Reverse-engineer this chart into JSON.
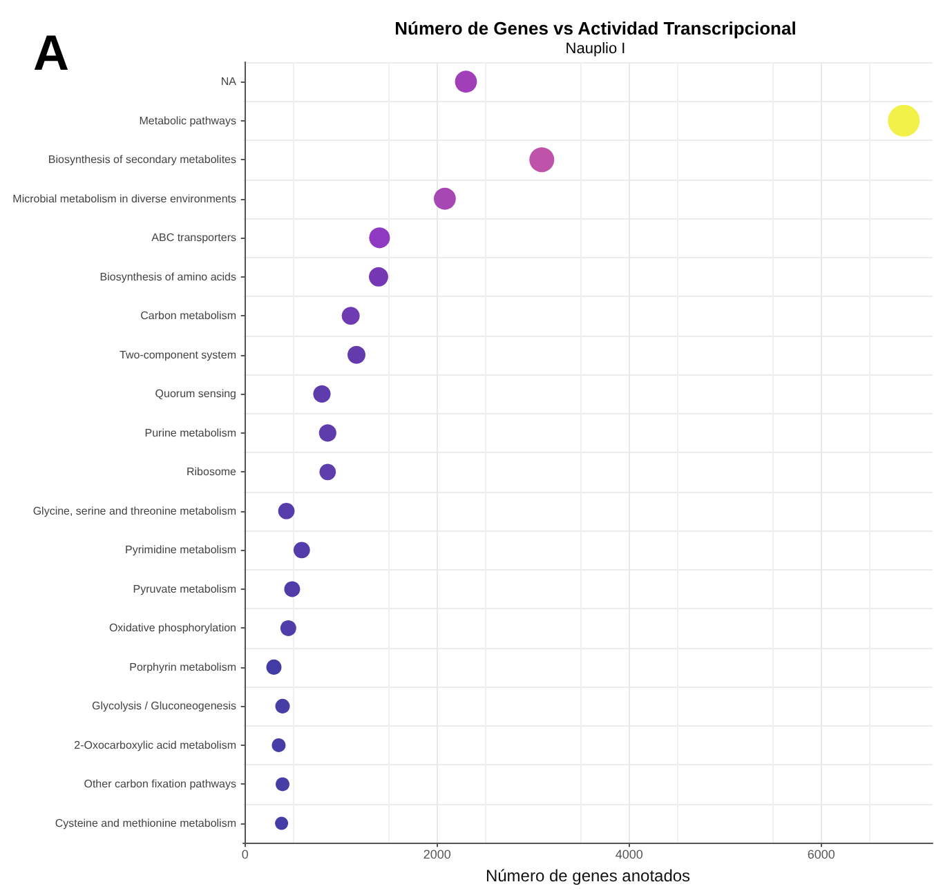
{
  "chart_data": {
    "type": "bubble",
    "title": "Número de Genes vs Actividad Transcripcional",
    "subtitle": "Nauplio I",
    "xlabel": "Número de genes anotados",
    "annotations": [
      "A"
    ],
    "orientation": "horizontal",
    "categories": [
      "NA",
      "Metabolic pathways",
      "Biosynthesis of secondary metabolites",
      "Microbial metabolism in diverse environments",
      "ABC transporters",
      "Biosynthesis of amino acids",
      "Carbon metabolism",
      "Two-component system",
      "Quorum sensing",
      "Purine metabolism",
      "Ribosome",
      "Glycine, serine and threonine metabolism",
      "Pyrimidine metabolism",
      "Pyruvate metabolism",
      "Oxidative phosphorylation",
      "Porphyrin metabolism",
      "Glycolysis / Gluconeogenesis",
      "2-Oxocarboxylic acid metabolism",
      "Other carbon fixation pathways",
      "Cysteine and methionine metabolism"
    ],
    "values": [
      2300,
      6860,
      3090,
      2080,
      1400,
      1390,
      1100,
      1160,
      800,
      860,
      860,
      430,
      590,
      490,
      450,
      300,
      390,
      350,
      390,
      380
    ],
    "sizes": [
      0.48,
      1,
      0.61,
      0.48,
      0.43,
      0.37,
      0.32,
      0.32,
      0.3,
      0.3,
      0.27,
      0.27,
      0.27,
      0.25,
      0.25,
      0.23,
      0.21,
      0.19,
      0.19,
      0.17
    ],
    "colors": [
      "#9c35b5",
      "#f0f040",
      "#bb4aa4",
      "#a23db0",
      "#8a2fc0",
      "#6f2cb0",
      "#6730ae",
      "#5c30a8",
      "#5631a8",
      "#5532a8",
      "#5533a8",
      "#4d33a6",
      "#4b32a6",
      "#4732a4",
      "#4733a4",
      "#3a32a0",
      "#3c33a0",
      "#3d33a2",
      "#3c33a0",
      "#3a33a0"
    ],
    "xlim": [
      -20,
      7160
    ],
    "xticks": [
      0,
      2000,
      4000,
      6000
    ],
    "grid": true
  }
}
